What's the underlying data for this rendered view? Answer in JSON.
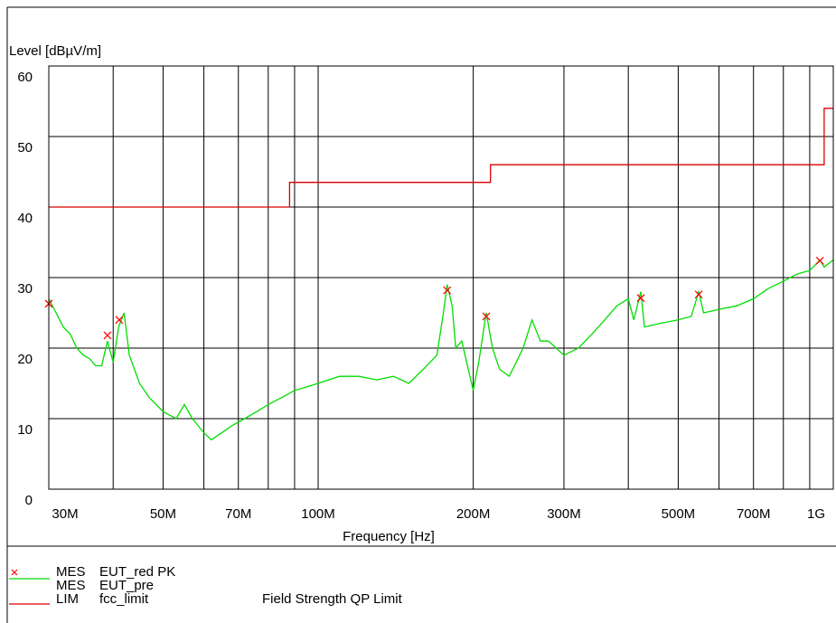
{
  "chart_data": {
    "type": "line",
    "y_label": "Level [dBµV/m]",
    "x_label": "Frequency [Hz]",
    "log_x": true,
    "grid": true,
    "xlim": [
      30000000,
      1000000000
    ],
    "ylim": [
      0,
      60
    ],
    "yticks": [
      0,
      10,
      20,
      30,
      40,
      50,
      60
    ],
    "xticks": [
      {
        "value": 30000000,
        "label": "30M"
      },
      {
        "value": 50000000,
        "label": "50M"
      },
      {
        "value": 70000000,
        "label": "70M"
      },
      {
        "value": 100000000,
        "label": "100M"
      },
      {
        "value": 200000000,
        "label": "200M"
      },
      {
        "value": 300000000,
        "label": "300M"
      },
      {
        "value": 500000000,
        "label": "500M"
      },
      {
        "value": 700000000,
        "label": "700M"
      },
      {
        "value": 1000000000,
        "label": "1G"
      }
    ],
    "xminor": [
      40000000,
      60000000,
      80000000,
      90000000,
      400000000,
      600000000,
      800000000,
      900000000
    ],
    "series": [
      {
        "name": "EUT_red PK",
        "kind": "MES",
        "color": "#ff0000",
        "marker": "x",
        "x": [
          30000000,
          39000000,
          41100000,
          178000000,
          212000000,
          423000000,
          548000000,
          942000000
        ],
        "values": [
          26.3,
          21.8,
          24.0,
          28.2,
          24.5,
          27.1,
          27.6,
          32.4
        ]
      },
      {
        "name": "EUT_pre",
        "kind": "MES",
        "color": "#00dd00",
        "x": [
          30000000,
          31000000,
          32000000,
          33000000,
          34000000,
          35000000,
          36000000,
          37000000,
          38000000,
          39000000,
          40000000,
          41000000,
          42000000,
          43000000,
          45000000,
          47000000,
          50000000,
          53000000,
          55000000,
          57000000,
          60000000,
          62000000,
          65000000,
          68000000,
          72000000,
          76000000,
          80000000,
          85000000,
          90000000,
          95000000,
          100000000,
          110000000,
          120000000,
          130000000,
          140000000,
          150000000,
          160000000,
          170000000,
          175000000,
          178000000,
          182000000,
          185000000,
          190000000,
          200000000,
          205000000,
          212000000,
          218000000,
          225000000,
          235000000,
          250000000,
          260000000,
          270000000,
          280000000,
          300000000,
          320000000,
          340000000,
          360000000,
          380000000,
          400000000,
          410000000,
          423000000,
          430000000,
          460000000,
          500000000,
          530000000,
          548000000,
          560000000,
          600000000,
          650000000,
          700000000,
          750000000,
          800000000,
          850000000,
          900000000,
          942000000,
          960000000,
          1000000000
        ],
        "values": [
          27,
          25,
          23,
          22,
          20,
          19,
          18.5,
          17.5,
          17.5,
          21,
          18,
          23,
          25,
          19,
          15,
          13,
          11,
          10,
          12,
          10,
          8,
          7,
          8,
          9,
          10,
          11,
          12,
          13,
          14,
          14.5,
          15,
          16,
          16,
          15.5,
          16,
          15,
          17,
          19,
          25,
          29,
          26,
          20,
          21,
          14,
          18,
          25,
          20,
          17,
          16,
          20,
          24,
          21,
          21,
          19,
          20,
          22,
          24,
          26,
          27,
          24,
          28,
          23,
          23.5,
          24,
          24.5,
          28,
          25,
          25.5,
          26,
          27,
          28.5,
          29.5,
          30.5,
          31,
          32.5,
          31.5,
          32.5
        ]
      },
      {
        "name": "fcc_limit",
        "kind": "LIM",
        "color": "#dd0000",
        "description": "Field Strength QP Limit",
        "x": [
          30000000,
          88000000,
          88000000,
          216000000,
          216000000,
          960000000,
          960000000,
          1000000000
        ],
        "values": [
          40,
          40,
          43.5,
          43.5,
          46,
          46,
          54,
          54
        ]
      }
    ]
  }
}
